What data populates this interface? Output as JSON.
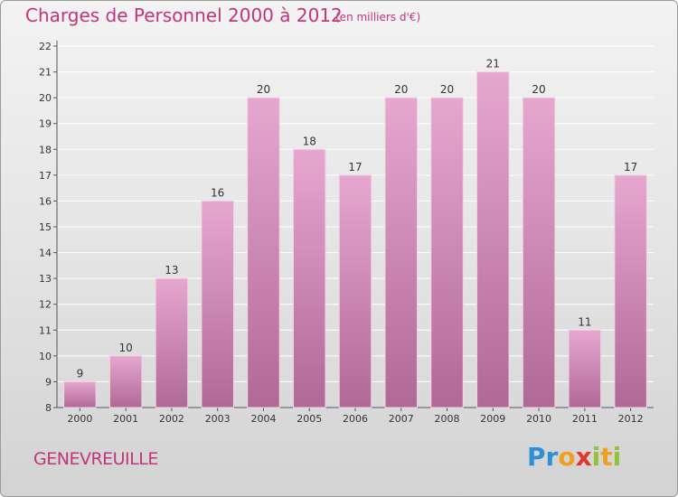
{
  "chart_data": {
    "type": "bar",
    "title": "Charges de Personnel 2000 à 2012",
    "subtitle": "(en milliers d'€)",
    "categories": [
      "2000",
      "2001",
      "2002",
      "2003",
      "2004",
      "2005",
      "2006",
      "2007",
      "2008",
      "2009",
      "2010",
      "2011",
      "2012"
    ],
    "values": [
      9,
      10,
      13,
      16,
      20,
      18,
      17,
      20,
      20,
      21,
      20,
      11,
      17
    ],
    "ylim": [
      8,
      22
    ],
    "yticks": [
      8,
      9,
      10,
      11,
      12,
      13,
      14,
      15,
      16,
      17,
      18,
      19,
      20,
      21,
      22
    ],
    "xlabel": "",
    "ylabel": "",
    "grid": true,
    "data_labels": true,
    "colors": {
      "bar_top": "#e6a7cf",
      "bar_bottom": "#b06996",
      "grid": "#ffffff",
      "title": "#c2357a"
    }
  },
  "footer": {
    "commune": "GENEVREUILLE",
    "logo_letters": [
      "P",
      "r",
      "o",
      "x",
      "i",
      "t",
      "i"
    ]
  }
}
